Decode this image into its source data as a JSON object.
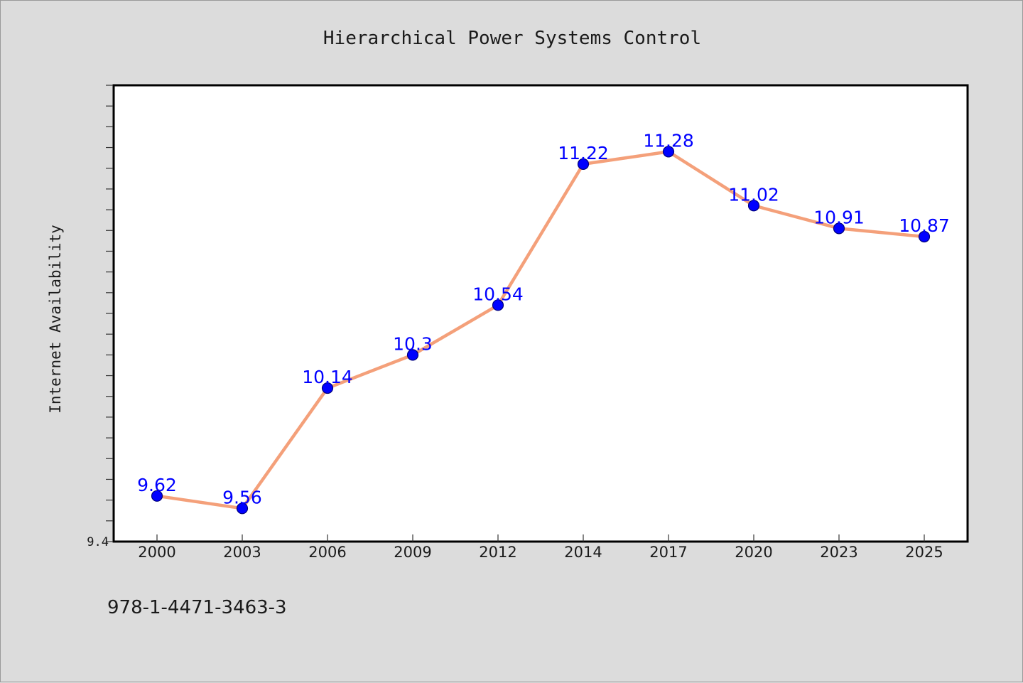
{
  "chart_data": {
    "type": "line",
    "title": "Hierarchical Power Systems Control",
    "ylabel": "Internet Availability",
    "xlabel": "",
    "x": [
      "2000",
      "2003",
      "2006",
      "2009",
      "2012",
      "2014",
      "2017",
      "2020",
      "2023",
      "2025"
    ],
    "series": [
      {
        "values": [
          9.62,
          9.56,
          10.14,
          10.3,
          10.54,
          11.22,
          11.28,
          11.02,
          10.91,
          10.87
        ],
        "line_color": "#f4a07a",
        "marker_color": "#0000ff"
      }
    ],
    "y_tick_labels": [
      "9.4"
    ],
    "ylim": [
      9.4,
      11.6
    ],
    "y_minor_tick_step": 0.1,
    "grid": false,
    "legend": "none",
    "data_labels": true
  },
  "footer": {
    "isbn": "978-1-4471-3463-3"
  },
  "colors": {
    "background": "#dcdcdc",
    "plot_area": "#ffffff",
    "label": "#0000ff"
  }
}
